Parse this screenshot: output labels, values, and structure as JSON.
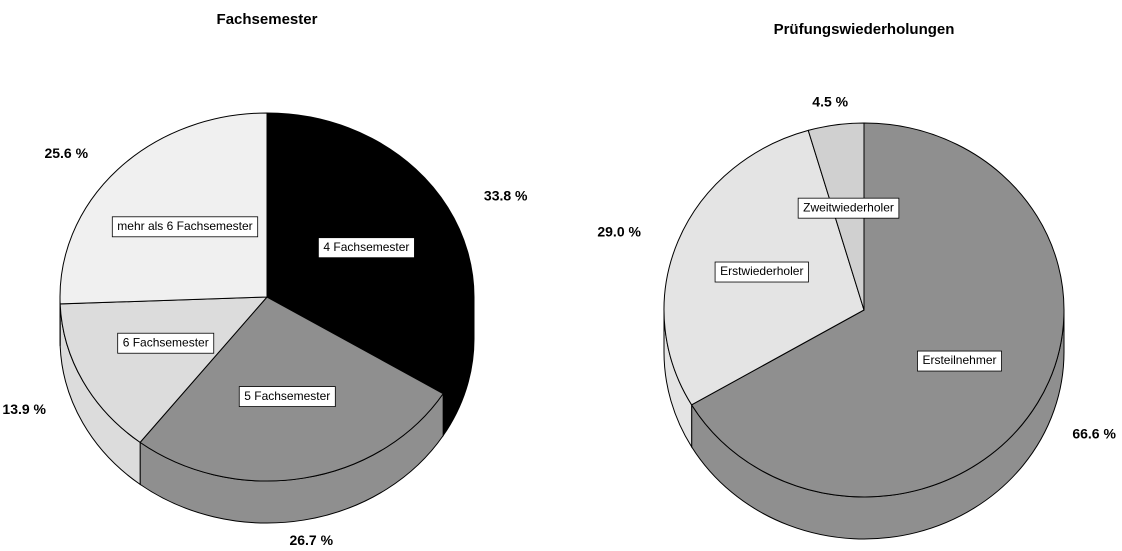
{
  "chart_data": [
    {
      "type": "pie",
      "title": "Fachsemester",
      "categories": [
        "4 Fachsemester",
        "5 Fachsemester",
        "6 Fachsemester",
        "mehr als 6 Fachsemester"
      ],
      "values": [
        33.8,
        26.7,
        13.9,
        25.6
      ],
      "value_labels": [
        "33.8 %",
        "26.7 %",
        "13.9 %",
        "25.6 %"
      ],
      "colors": [
        "#000000",
        "#8f8f8f",
        "#dcdcdc",
        "#f0f0f0"
      ]
    },
    {
      "type": "pie",
      "title": "Prüfungswiederholungen",
      "categories": [
        "Ersteilnehmer",
        "Erstwiederholer",
        "Zweitwiederholer"
      ],
      "values": [
        66.6,
        29.0,
        4.5
      ],
      "value_labels": [
        "66.6 %",
        "29.0 %",
        "4.5 %"
      ],
      "colors": [
        "#8f8f8f",
        "#e4e4e4",
        "#d0d0d0"
      ]
    }
  ]
}
